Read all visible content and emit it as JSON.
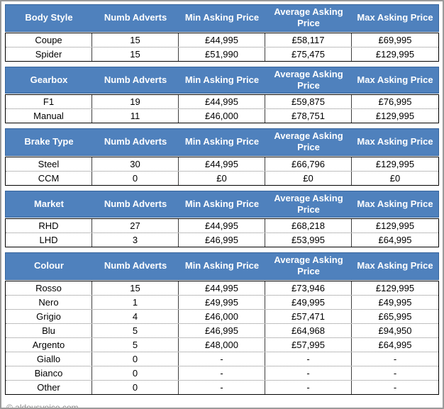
{
  "colors": {
    "header_bg": "#4f81bd",
    "header_text": "#ffffff",
    "header_border": "#36649b",
    "cell_border": "#3f3f3f",
    "row_divider": "#808080",
    "outer_border": "#9b9b9b",
    "footer_text": "#8a8a8a"
  },
  "column_headers": [
    "Numb Adverts",
    "Min Asking Price",
    "Average Asking Price",
    "Max Asking Price"
  ],
  "tables": [
    {
      "title": "Body Style",
      "rows": [
        [
          "Coupe",
          "15",
          "£44,995",
          "£58,117",
          "£69,995"
        ],
        [
          "Spider",
          "15",
          "£51,990",
          "£75,475",
          "£129,995"
        ]
      ]
    },
    {
      "title": "Gearbox",
      "rows": [
        [
          "F1",
          "19",
          "£44,995",
          "£59,875",
          "£76,995"
        ],
        [
          "Manual",
          "11",
          "£46,000",
          "£78,751",
          "£129,995"
        ]
      ]
    },
    {
      "title": "Brake Type",
      "rows": [
        [
          "Steel",
          "30",
          "£44,995",
          "£66,796",
          "£129,995"
        ],
        [
          "CCM",
          "0",
          "£0",
          "£0",
          "£0"
        ]
      ]
    },
    {
      "title": "Market",
      "rows": [
        [
          "RHD",
          "27",
          "£44,995",
          "£68,218",
          "£129,995"
        ],
        [
          "LHD",
          "3",
          "£46,995",
          "£53,995",
          "£64,995"
        ]
      ]
    },
    {
      "title": "Colour",
      "rows": [
        [
          "Rosso",
          "15",
          "£44,995",
          "£73,946",
          "£129,995"
        ],
        [
          "Nero",
          "1",
          "£49,995",
          "£49,995",
          "£49,995"
        ],
        [
          "Grigio",
          "4",
          "£46,000",
          "£57,471",
          "£65,995"
        ],
        [
          "Blu",
          "5",
          "£46,995",
          "£64,968",
          "£94,950"
        ],
        [
          "Argento",
          "5",
          "£48,000",
          "£57,995",
          "£64,995"
        ],
        [
          "Giallo",
          "0",
          "-",
          "-",
          "-"
        ],
        [
          "Bianco",
          "0",
          "-",
          "-",
          "-"
        ],
        [
          "Other",
          "0",
          "-",
          "-",
          "-"
        ]
      ]
    }
  ],
  "footer": {
    "text": "© aldousvoice.com"
  }
}
